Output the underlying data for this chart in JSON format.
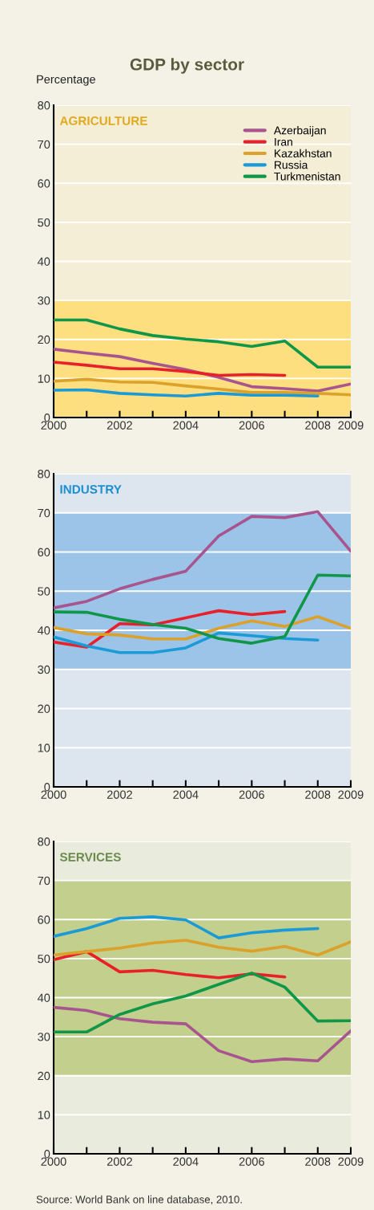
{
  "chart_data": [
    {
      "type": "line",
      "title": "GDP by sector",
      "ylabel": "Percentage",
      "subtitle": "AGRICULTURE",
      "x": [
        2000,
        2001,
        2002,
        2003,
        2004,
        2005,
        2006,
        2007,
        2008,
        2009
      ],
      "xlim": [
        2000,
        2009
      ],
      "xticks": [
        2000,
        {
          "value": 2001,
          "label": null
        },
        2002,
        {
          "value": 2003,
          "label": null
        },
        2004,
        {
          "value": 2005,
          "label": null
        },
        2006,
        {
          "value": 2007,
          "label": null
        },
        2008,
        2009
      ],
      "ylim": [
        0,
        80
      ],
      "yticks": [
        0,
        10,
        20,
        30,
        40,
        50,
        60,
        70,
        80
      ],
      "grid": "y",
      "legend": "top right",
      "marker": "none",
      "line_style": "solid",
      "bands": [
        {
          "axis": "y",
          "from": 0,
          "to": 30,
          "color": "#fddf80"
        }
      ],
      "series": [
        {
          "name": "Azerbaijan",
          "color": "#a8558f",
          "values": [
            17.5,
            16.5,
            15.6,
            13.9,
            12.3,
            10.3,
            7.9,
            7.4,
            6.8,
            8.6
          ]
        },
        {
          "name": "Iran",
          "color": "#e8202a",
          "values": [
            14.2,
            13.4,
            12.5,
            12.5,
            11.8,
            10.8,
            11.0,
            10.8,
            null,
            null
          ]
        },
        {
          "name": "Kazakhstan",
          "color": "#dba12a",
          "values": [
            9.3,
            9.8,
            9.1,
            9.0,
            8.1,
            7.3,
            6.4,
            6.4,
            6.2,
            5.8
          ]
        },
        {
          "name": "Russia",
          "color": "#1a9ad6",
          "values": [
            7.0,
            7.1,
            6.2,
            5.8,
            5.5,
            6.2,
            5.7,
            5.7,
            5.5,
            null
          ]
        },
        {
          "name": "Turkmenistan",
          "color": "#0f9648",
          "values": [
            25.0,
            25.0,
            22.7,
            21.0,
            20.1,
            19.4,
            18.2,
            19.6,
            12.9,
            12.9
          ]
        }
      ]
    },
    {
      "type": "line",
      "subtitle": "INDUSTRY",
      "x": [
        2000,
        2001,
        2002,
        2003,
        2004,
        2005,
        2006,
        2007,
        2008,
        2009
      ],
      "xlim": [
        2000,
        2009
      ],
      "xticks": [
        2000,
        {
          "value": 2001,
          "label": null
        },
        2002,
        {
          "value": 2003,
          "label": null
        },
        2004,
        {
          "value": 2005,
          "label": null
        },
        2006,
        {
          "value": 2007,
          "label": null
        },
        2008,
        2009
      ],
      "ylim": [
        0,
        80
      ],
      "yticks": [
        0,
        10,
        20,
        30,
        40,
        50,
        60,
        70,
        80
      ],
      "grid": "y",
      "marker": "none",
      "line_style": "solid",
      "bands": [
        {
          "axis": "y",
          "from": 30,
          "to": 70,
          "color": "#9cc4e8"
        }
      ],
      "series": [
        {
          "color": "#a8558f",
          "values": [
            45.7,
            47.4,
            50.6,
            53.0,
            55.1,
            64.1,
            69.1,
            68.8,
            70.3,
            60.2
          ]
        },
        {
          "color": "#e8202a",
          "values": [
            37.0,
            35.7,
            41.7,
            41.4,
            43.2,
            45.0,
            44.0,
            44.8,
            null,
            null
          ]
        },
        {
          "color": "#dba12a",
          "values": [
            40.7,
            39.1,
            38.8,
            37.8,
            37.8,
            40.5,
            42.4,
            41.0,
            43.5,
            40.5
          ]
        },
        {
          "color": "#1a9ad6",
          "values": [
            38.3,
            36.0,
            34.3,
            34.3,
            35.5,
            39.3,
            38.6,
            37.9,
            37.5,
            null
          ]
        },
        {
          "color": "#0f9648",
          "values": [
            44.7,
            44.6,
            42.8,
            41.5,
            40.5,
            37.9,
            36.7,
            38.4,
            54.1,
            53.9
          ]
        }
      ]
    },
    {
      "type": "line",
      "subtitle": "SERVICES",
      "x": [
        2000,
        2001,
        2002,
        2003,
        2004,
        2005,
        2006,
        2007,
        2008,
        2009
      ],
      "xlim": [
        2000,
        2009
      ],
      "xticks": [
        2000,
        {
          "value": 2001,
          "label": null
        },
        2002,
        {
          "value": 2003,
          "label": null
        },
        2004,
        {
          "value": 2005,
          "label": null
        },
        2006,
        {
          "value": 2007,
          "label": null
        },
        2008,
        2009
      ],
      "ylim": [
        0,
        80
      ],
      "yticks": [
        0,
        10,
        20,
        30,
        40,
        50,
        60,
        70,
        80
      ],
      "grid": "y",
      "marker": "none",
      "line_style": "solid",
      "bands": [
        {
          "axis": "y",
          "from": 20,
          "to": 70,
          "color": "#c3cf8c"
        }
      ],
      "annotations": [
        "Source: World Bank on line database, 2010."
      ],
      "series": [
        {
          "color": "#a8558f",
          "values": [
            37.5,
            36.7,
            34.6,
            33.7,
            33.3,
            26.4,
            23.6,
            24.3,
            23.8,
            31.5
          ]
        },
        {
          "color": "#e8202a",
          "values": [
            49.7,
            51.8,
            46.6,
            47.0,
            45.9,
            45.1,
            46.1,
            45.3,
            null,
            null
          ]
        },
        {
          "color": "#dba12a",
          "values": [
            50.9,
            51.8,
            52.7,
            54.0,
            54.7,
            52.9,
            51.9,
            53.1,
            50.9,
            54.3
          ]
        },
        {
          "color": "#1a9ad6",
          "values": [
            55.7,
            57.7,
            60.3,
            60.7,
            59.9,
            55.3,
            56.6,
            57.3,
            57.7,
            null
          ]
        },
        {
          "color": "#0f9648",
          "values": [
            31.2,
            31.2,
            35.7,
            38.4,
            40.4,
            43.4,
            46.3,
            42.7,
            34.0,
            34.1
          ]
        }
      ]
    }
  ]
}
